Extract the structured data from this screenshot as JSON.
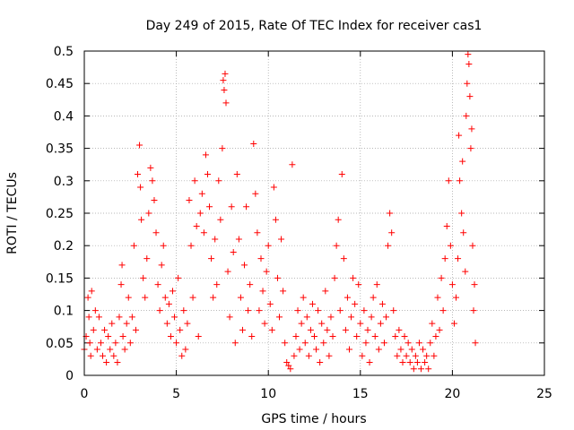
{
  "chart_data": {
    "type": "scatter",
    "title": "Day 249 of 2015, Rate Of TEC Index for receiver cas1",
    "xlabel": "GPS time / hours",
    "ylabel": "ROTI / TECUs",
    "xlim": [
      0,
      25
    ],
    "ylim": [
      0,
      0.5
    ],
    "x_ticks": [
      0,
      5,
      10,
      15,
      20,
      25
    ],
    "y_ticks": [
      0,
      0.05,
      0.1,
      0.15,
      0.2,
      0.25,
      0.3,
      0.35,
      0.4,
      0.45,
      0.5
    ],
    "x_tick_labels": [
      "0",
      "5",
      "10",
      "15",
      "20",
      "25"
    ],
    "y_tick_labels": [
      "0",
      "0.05",
      "0.1",
      "0.15",
      "0.2",
      "0.25",
      "0.3",
      "0.35",
      "0.4",
      "0.45",
      "0.5"
    ],
    "grid": true,
    "marker": "+",
    "marker_color": "#ff0000",
    "series": [
      {
        "name": "ROTI",
        "points": [
          [
            0.0,
            0.04
          ],
          [
            0.1,
            0.06
          ],
          [
            0.2,
            0.12
          ],
          [
            0.25,
            0.09
          ],
          [
            0.3,
            0.05
          ],
          [
            0.35,
            0.03
          ],
          [
            0.4,
            0.13
          ],
          [
            0.5,
            0.07
          ],
          [
            0.6,
            0.1
          ],
          [
            0.7,
            0.04
          ],
          [
            0.8,
            0.09
          ],
          [
            0.9,
            0.05
          ],
          [
            1.0,
            0.03
          ],
          [
            1.1,
            0.07
          ],
          [
            1.2,
            0.02
          ],
          [
            1.3,
            0.06
          ],
          [
            1.4,
            0.04
          ],
          [
            1.5,
            0.08
          ],
          [
            1.6,
            0.03
          ],
          [
            1.7,
            0.05
          ],
          [
            1.8,
            0.02
          ],
          [
            1.9,
            0.09
          ],
          [
            2.0,
            0.14
          ],
          [
            2.05,
            0.17
          ],
          [
            2.1,
            0.06
          ],
          [
            2.2,
            0.04
          ],
          [
            2.3,
            0.08
          ],
          [
            2.4,
            0.12
          ],
          [
            2.5,
            0.05
          ],
          [
            2.6,
            0.09
          ],
          [
            2.7,
            0.2
          ],
          [
            2.8,
            0.07
          ],
          [
            2.9,
            0.31
          ],
          [
            3.0,
            0.355
          ],
          [
            3.05,
            0.29
          ],
          [
            3.1,
            0.24
          ],
          [
            3.2,
            0.15
          ],
          [
            3.3,
            0.12
          ],
          [
            3.4,
            0.18
          ],
          [
            3.5,
            0.25
          ],
          [
            3.6,
            0.32
          ],
          [
            3.7,
            0.3
          ],
          [
            3.8,
            0.27
          ],
          [
            3.9,
            0.22
          ],
          [
            4.0,
            0.14
          ],
          [
            4.1,
            0.1
          ],
          [
            4.2,
            0.17
          ],
          [
            4.3,
            0.2
          ],
          [
            4.4,
            0.12
          ],
          [
            4.5,
            0.08
          ],
          [
            4.6,
            0.11
          ],
          [
            4.7,
            0.06
          ],
          [
            4.8,
            0.13
          ],
          [
            4.9,
            0.09
          ],
          [
            5.0,
            0.05
          ],
          [
            5.1,
            0.15
          ],
          [
            5.2,
            0.07
          ],
          [
            5.3,
            0.03
          ],
          [
            5.4,
            0.1
          ],
          [
            5.5,
            0.04
          ],
          [
            5.6,
            0.08
          ],
          [
            5.7,
            0.27
          ],
          [
            5.8,
            0.2
          ],
          [
            5.9,
            0.12
          ],
          [
            6.0,
            0.3
          ],
          [
            6.1,
            0.23
          ],
          [
            6.2,
            0.06
          ],
          [
            6.3,
            0.25
          ],
          [
            6.4,
            0.28
          ],
          [
            6.5,
            0.22
          ],
          [
            6.6,
            0.34
          ],
          [
            6.7,
            0.31
          ],
          [
            6.8,
            0.26
          ],
          [
            6.9,
            0.18
          ],
          [
            7.0,
            0.12
          ],
          [
            7.1,
            0.21
          ],
          [
            7.2,
            0.14
          ],
          [
            7.3,
            0.3
          ],
          [
            7.4,
            0.24
          ],
          [
            7.5,
            0.35
          ],
          [
            7.55,
            0.455
          ],
          [
            7.6,
            0.44
          ],
          [
            7.65,
            0.465
          ],
          [
            7.7,
            0.42
          ],
          [
            7.8,
            0.16
          ],
          [
            7.9,
            0.09
          ],
          [
            8.0,
            0.26
          ],
          [
            8.1,
            0.19
          ],
          [
            8.2,
            0.05
          ],
          [
            8.3,
            0.31
          ],
          [
            8.4,
            0.21
          ],
          [
            8.5,
            0.12
          ],
          [
            8.6,
            0.07
          ],
          [
            8.7,
            0.17
          ],
          [
            8.8,
            0.26
          ],
          [
            8.9,
            0.1
          ],
          [
            9.0,
            0.14
          ],
          [
            9.1,
            0.06
          ],
          [
            9.2,
            0.357
          ],
          [
            9.3,
            0.28
          ],
          [
            9.4,
            0.22
          ],
          [
            9.5,
            0.1
          ],
          [
            9.6,
            0.18
          ],
          [
            9.7,
            0.13
          ],
          [
            9.8,
            0.08
          ],
          [
            9.9,
            0.16
          ],
          [
            10.0,
            0.2
          ],
          [
            10.1,
            0.11
          ],
          [
            10.2,
            0.07
          ],
          [
            10.3,
            0.29
          ],
          [
            10.4,
            0.24
          ],
          [
            10.5,
            0.15
          ],
          [
            10.6,
            0.09
          ],
          [
            10.7,
            0.21
          ],
          [
            10.8,
            0.13
          ],
          [
            10.9,
            0.05
          ],
          [
            11.0,
            0.02
          ],
          [
            11.1,
            0.015
          ],
          [
            11.2,
            0.01
          ],
          [
            11.3,
            0.325
          ],
          [
            11.4,
            0.03
          ],
          [
            11.5,
            0.06
          ],
          [
            11.6,
            0.1
          ],
          [
            11.7,
            0.04
          ],
          [
            11.8,
            0.08
          ],
          [
            11.9,
            0.12
          ],
          [
            12.0,
            0.05
          ],
          [
            12.1,
            0.09
          ],
          [
            12.2,
            0.03
          ],
          [
            12.3,
            0.07
          ],
          [
            12.4,
            0.11
          ],
          [
            12.5,
            0.06
          ],
          [
            12.6,
            0.04
          ],
          [
            12.7,
            0.1
          ],
          [
            12.8,
            0.02
          ],
          [
            12.9,
            0.08
          ],
          [
            13.0,
            0.05
          ],
          [
            13.1,
            0.13
          ],
          [
            13.2,
            0.07
          ],
          [
            13.3,
            0.03
          ],
          [
            13.4,
            0.09
          ],
          [
            13.5,
            0.06
          ],
          [
            13.6,
            0.15
          ],
          [
            13.7,
            0.2
          ],
          [
            13.8,
            0.24
          ],
          [
            13.9,
            0.1
          ],
          [
            14.0,
            0.31
          ],
          [
            14.1,
            0.18
          ],
          [
            14.2,
            0.07
          ],
          [
            14.3,
            0.12
          ],
          [
            14.4,
            0.04
          ],
          [
            14.5,
            0.09
          ],
          [
            14.6,
            0.15
          ],
          [
            14.7,
            0.11
          ],
          [
            14.8,
            0.06
          ],
          [
            14.9,
            0.14
          ],
          [
            15.0,
            0.08
          ],
          [
            15.1,
            0.03
          ],
          [
            15.2,
            0.1
          ],
          [
            15.3,
            0.05
          ],
          [
            15.4,
            0.07
          ],
          [
            15.5,
            0.02
          ],
          [
            15.6,
            0.09
          ],
          [
            15.7,
            0.12
          ],
          [
            15.8,
            0.06
          ],
          [
            15.9,
            0.14
          ],
          [
            16.0,
            0.04
          ],
          [
            16.1,
            0.08
          ],
          [
            16.2,
            0.11
          ],
          [
            16.3,
            0.05
          ],
          [
            16.4,
            0.09
          ],
          [
            16.5,
            0.2
          ],
          [
            16.6,
            0.25
          ],
          [
            16.7,
            0.22
          ],
          [
            16.8,
            0.1
          ],
          [
            16.9,
            0.06
          ],
          [
            17.0,
            0.03
          ],
          [
            17.1,
            0.07
          ],
          [
            17.2,
            0.04
          ],
          [
            17.3,
            0.02
          ],
          [
            17.4,
            0.06
          ],
          [
            17.5,
            0.03
          ],
          [
            17.6,
            0.05
          ],
          [
            17.7,
            0.02
          ],
          [
            17.8,
            0.04
          ],
          [
            17.9,
            0.01
          ],
          [
            18.0,
            0.03
          ],
          [
            18.1,
            0.02
          ],
          [
            18.2,
            0.05
          ],
          [
            18.3,
            0.01
          ],
          [
            18.4,
            0.04
          ],
          [
            18.5,
            0.02
          ],
          [
            18.6,
            0.03
          ],
          [
            18.7,
            0.01
          ],
          [
            18.8,
            0.05
          ],
          [
            18.9,
            0.08
          ],
          [
            19.0,
            0.03
          ],
          [
            19.1,
            0.06
          ],
          [
            19.2,
            0.12
          ],
          [
            19.3,
            0.07
          ],
          [
            19.4,
            0.15
          ],
          [
            19.5,
            0.1
          ],
          [
            19.6,
            0.18
          ],
          [
            19.7,
            0.23
          ],
          [
            19.8,
            0.3
          ],
          [
            19.9,
            0.2
          ],
          [
            20.0,
            0.14
          ],
          [
            20.1,
            0.08
          ],
          [
            20.2,
            0.12
          ],
          [
            20.3,
            0.18
          ],
          [
            20.35,
            0.37
          ],
          [
            20.4,
            0.3
          ],
          [
            20.5,
            0.25
          ],
          [
            20.55,
            0.33
          ],
          [
            20.6,
            0.22
          ],
          [
            20.7,
            0.16
          ],
          [
            20.75,
            0.4
          ],
          [
            20.8,
            0.45
          ],
          [
            20.85,
            0.495
          ],
          [
            20.9,
            0.48
          ],
          [
            20.95,
            0.43
          ],
          [
            21.0,
            0.35
          ],
          [
            21.05,
            0.38
          ],
          [
            21.1,
            0.2
          ],
          [
            21.15,
            0.1
          ],
          [
            21.2,
            0.14
          ],
          [
            21.25,
            0.05
          ]
        ]
      }
    ]
  }
}
